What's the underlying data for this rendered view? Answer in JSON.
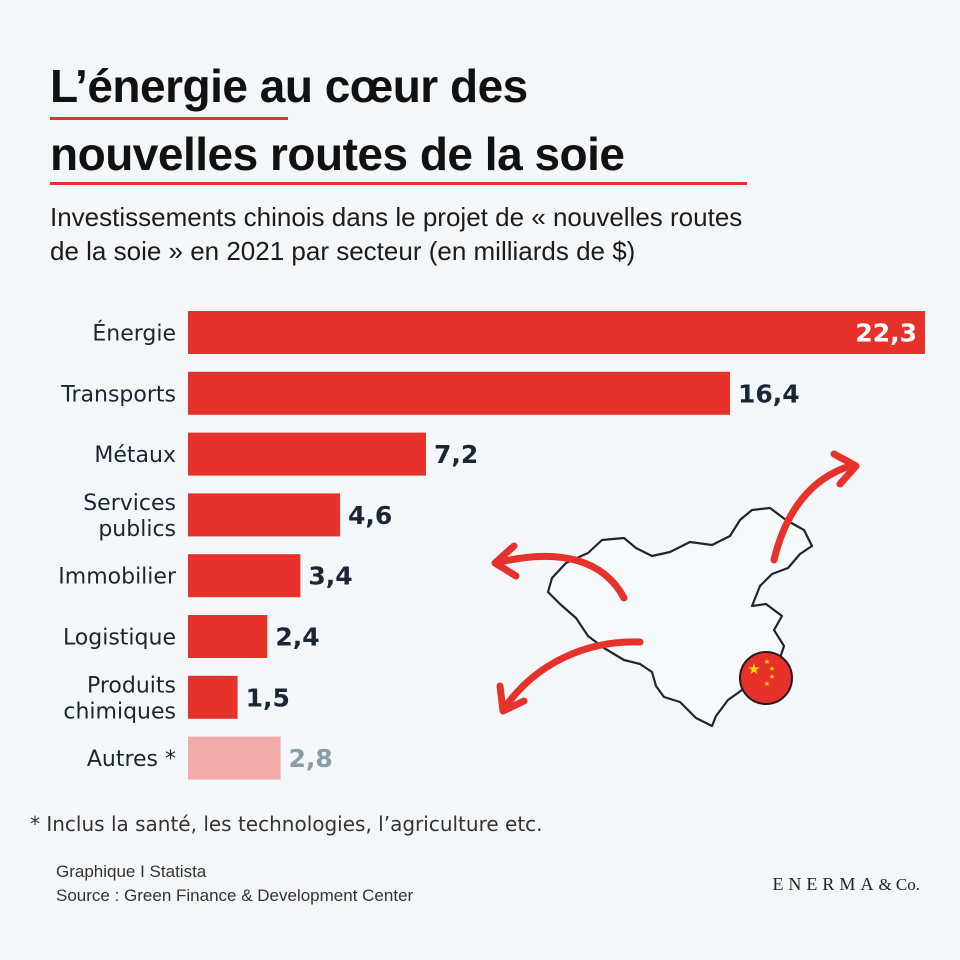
{
  "header": {
    "title_line1_highlight": "L’énergie",
    "title_line1_rest": " au cœur des",
    "title_line2": "nouvelles routes de la soie",
    "subtitle_line1": "Investissements chinois dans le projet de « nouvelles routes",
    "subtitle_line2": "de la soie » en 2021 par secteur (en milliards de $)"
  },
  "colors": {
    "accent": "#e6322a",
    "muted_bar": "#f4a9ab",
    "muted_text": "#8a9ca8",
    "text": "#1a2535"
  },
  "chart_data": {
    "type": "bar",
    "orientation": "horizontal",
    "categories": [
      "Énergie",
      "Transports",
      "Métaux",
      "Services publics",
      "Immobilier",
      "Logistique",
      "Produits chimiques",
      "Autres *"
    ],
    "category_lines": [
      [
        "Énergie"
      ],
      [
        "Transports"
      ],
      [
        "Métaux"
      ],
      [
        "Services",
        "publics"
      ],
      [
        "Immobilier"
      ],
      [
        "Logistique"
      ],
      [
        "Produits",
        "chimiques"
      ],
      [
        "Autres *"
      ]
    ],
    "values": [
      22.3,
      16.4,
      7.2,
      4.6,
      3.4,
      2.4,
      1.5,
      2.8
    ],
    "value_labels": [
      "22,3",
      "16,4",
      "7,2",
      "4,6",
      "3,4",
      "2,4",
      "1,5",
      "2,8"
    ],
    "highlight_muted": [
      false,
      false,
      false,
      false,
      false,
      false,
      false,
      true
    ],
    "xlim": [
      0,
      22.3
    ],
    "unit": "milliards de $"
  },
  "illustration": {
    "map_icon": "china-map-icon",
    "flag_icon": "china-flag-icon",
    "arrows": [
      "arrow-northeast-icon",
      "arrow-west-icon",
      "arrow-southwest-icon"
    ]
  },
  "footer": {
    "footnote": "* Inclus la santé, les technologies, l’agriculture etc.",
    "credit_line1": "Graphique I Statista",
    "credit_line2": "Source : Green Finance & Development Center",
    "brand_name": "ENERMA",
    "brand_suffix": "& Co."
  }
}
